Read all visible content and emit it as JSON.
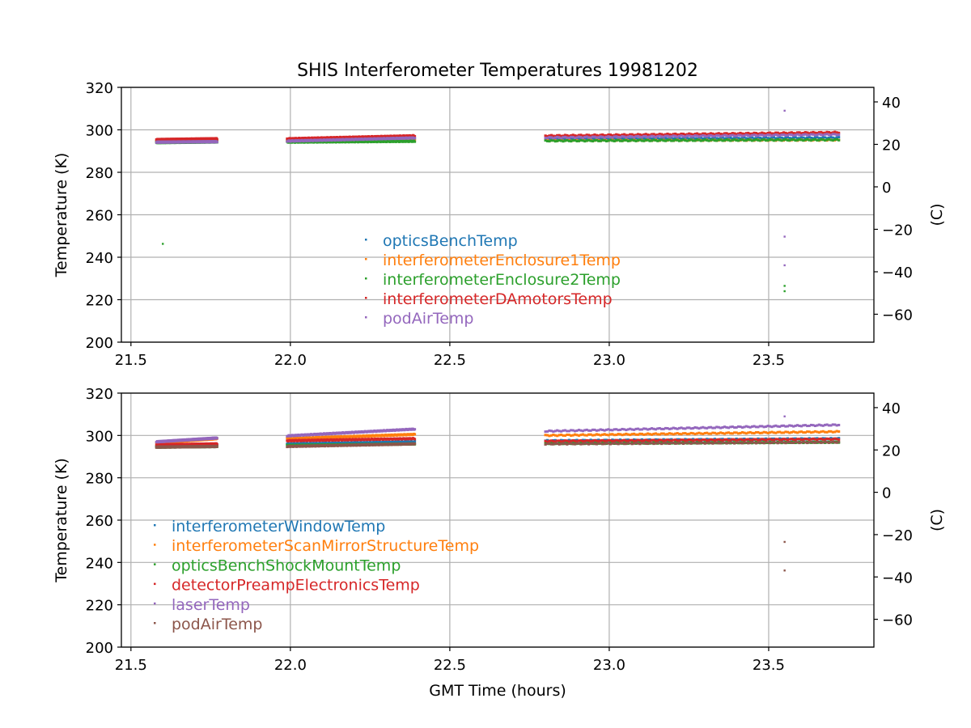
{
  "figure": {
    "title": "SHIS Interferometer Temperatures 19981202",
    "xlabel": "GMT Time (hours)"
  },
  "chart_data": [
    {
      "type": "scatter",
      "xlabel": "",
      "ylabel": "Temperature (K)",
      "y2label": "(C)",
      "xlim": [
        21.47,
        23.83
      ],
      "ylim": [
        200,
        320
      ],
      "y2lim": [
        -73.15,
        46.85
      ],
      "xticks": [
        "21.5",
        "22.0",
        "22.5",
        "23.0",
        "23.5"
      ],
      "xtick_values": [
        21.5,
        22.0,
        22.5,
        23.0,
        23.5
      ],
      "yticks": [
        "200",
        "220",
        "240",
        "260",
        "280",
        "300",
        "320"
      ],
      "ytick_values": [
        200,
        220,
        240,
        260,
        280,
        300,
        320
      ],
      "y2ticks": [
        "−60",
        "−40",
        "−20",
        "0",
        "20",
        "40"
      ],
      "y2tick_values": [
        -60,
        -40,
        -20,
        0,
        20,
        40
      ],
      "grid": true,
      "legend_position": "center",
      "segments": [
        [
          21.58,
          21.77
        ],
        [
          21.99,
          22.39
        ],
        [
          22.8,
          23.72
        ]
      ],
      "series": [
        {
          "name": "opticsBenchTemp",
          "color": "#1f77b4",
          "y": [
            [
              294.5,
              294.8
            ],
            [
              295.0,
              295.6
            ],
            [
              295.8,
              296.3
            ]
          ],
          "outliers": []
        },
        {
          "name": "interferometerEnclosure1Temp",
          "color": "#ff7f0e",
          "y": [
            [
              294.6,
              294.9
            ],
            [
              294.6,
              295.0
            ],
            [
              295.0,
              295.2
            ]
          ],
          "outliers": []
        },
        {
          "name": "interferometerEnclosure2Temp",
          "color": "#2ca02c",
          "y": [
            [
              294.0,
              294.3
            ],
            [
              294.2,
              294.6
            ],
            [
              294.8,
              295.3
            ]
          ],
          "outliers": [
            [
              21.6,
              246.3
            ],
            [
              23.55,
              226.5
            ],
            [
              23.55,
              224.0
            ]
          ]
        },
        {
          "name": "interferometerDAmotorsTemp",
          "color": "#d62728",
          "y": [
            [
              295.4,
              295.8
            ],
            [
              295.8,
              297.2
            ],
            [
              297.2,
              298.8
            ]
          ],
          "outliers": []
        },
        {
          "name": "podAirTemp",
          "color": "#9467bd",
          "y": [
            [
              294.2,
              294.4
            ],
            [
              294.7,
              296.2
            ],
            [
              296.3,
              297.8
            ]
          ],
          "outliers": [
            [
              23.55,
              309.0
            ],
            [
              23.55,
              249.7
            ],
            [
              23.55,
              236.2
            ]
          ]
        }
      ]
    },
    {
      "type": "scatter",
      "xlabel": "GMT Time (hours)",
      "ylabel": "Temperature (K)",
      "y2label": "(C)",
      "xlim": [
        21.47,
        23.83
      ],
      "ylim": [
        200,
        320
      ],
      "y2lim": [
        -73.15,
        46.85
      ],
      "xticks": [
        "21.5",
        "22.0",
        "22.5",
        "23.0",
        "23.5"
      ],
      "xtick_values": [
        21.5,
        22.0,
        22.5,
        23.0,
        23.5
      ],
      "yticks": [
        "200",
        "220",
        "240",
        "260",
        "280",
        "300",
        "320"
      ],
      "ytick_values": [
        200,
        220,
        240,
        260,
        280,
        300,
        320
      ],
      "y2ticks": [
        "−60",
        "−40",
        "−20",
        "0",
        "20",
        "40"
      ],
      "y2tick_values": [
        -60,
        -40,
        -20,
        0,
        20,
        40
      ],
      "grid": true,
      "legend_position": "lower left",
      "segments": [
        [
          21.58,
          21.77
        ],
        [
          21.99,
          22.39
        ],
        [
          22.8,
          23.72
        ]
      ],
      "series": [
        {
          "name": "interferometerWindowTemp",
          "color": "#1f77b4",
          "y": [
            [
              294.8,
              295.3
            ],
            [
              296.0,
              297.0
            ],
            [
              297.5,
              298.5
            ]
          ],
          "outliers": []
        },
        {
          "name": "interferometerScanMirrorStructureTemp",
          "color": "#ff7f0e",
          "y": [
            [
              296.5,
              298.5
            ],
            [
              298.5,
              300.5
            ],
            [
              300.0,
              301.8
            ]
          ],
          "outliers": []
        },
        {
          "name": "opticsBenchShockMountTemp",
          "color": "#2ca02c",
          "y": [
            [
              294.5,
              294.8
            ],
            [
              295.3,
              296.0
            ],
            [
              296.2,
              296.8
            ]
          ],
          "outliers": []
        },
        {
          "name": "detectorPreampElectronicsTemp",
          "color": "#d62728",
          "y": [
            [
              295.5,
              296.0
            ],
            [
              297.5,
              298.5
            ],
            [
              297.3,
              298.3
            ]
          ],
          "outliers": []
        },
        {
          "name": "laserTemp",
          "color": "#9467bd",
          "y": [
            [
              297.0,
              298.8
            ],
            [
              299.8,
              303.0
            ],
            [
              302.0,
              305.0
            ]
          ],
          "outliers": [
            [
              23.55,
              309.0
            ]
          ]
        },
        {
          "name": "podAirTemp",
          "color": "#8c564b",
          "y": [
            [
              294.5,
              294.8
            ],
            [
              294.8,
              296.0
            ],
            [
              296.0,
              296.8
            ]
          ],
          "outliers": [
            [
              23.55,
              249.7
            ],
            [
              23.55,
              236.2
            ]
          ]
        }
      ]
    }
  ]
}
